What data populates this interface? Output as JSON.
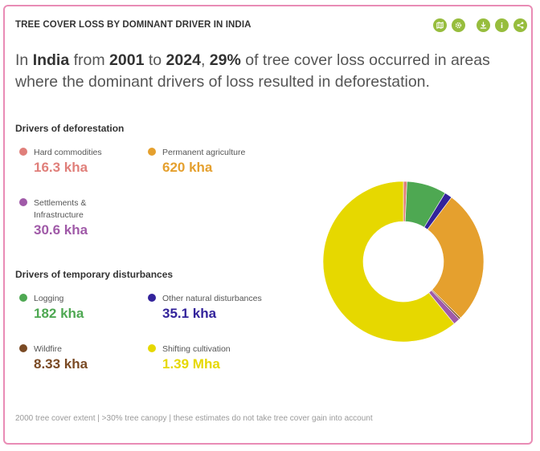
{
  "widget": {
    "title": "TREE COVER LOSS BY DOMINANT DRIVER IN INDIA",
    "toolbar": [
      {
        "icon": "map-icon"
      },
      {
        "icon": "settings-icon"
      },
      {
        "icon": "download-icon"
      },
      {
        "icon": "info-icon"
      },
      {
        "icon": "share-icon"
      }
    ],
    "accent_color": "#97bd3d",
    "border_color": "#e98cb5"
  },
  "summary": {
    "p1": "In ",
    "location": "India",
    "p2": " from ",
    "start_year": "2001",
    "p3": " to ",
    "end_year": "2024",
    "p4": ", ",
    "percent": "29%",
    "p5": " of tree cover loss occurred in areas where the dominant drivers of loss resulted in deforestation."
  },
  "deforestation": {
    "heading": "Drivers of deforestation",
    "items": [
      {
        "name": "Hard commodities",
        "value": "16.3 kha",
        "color": "#e07f7a"
      },
      {
        "name": "Permanent agriculture",
        "value": "620 kha",
        "color": "#e5a02e"
      },
      {
        "name": "Settlements & Infrastructure",
        "value": "30.6 kha",
        "color": "#a05aa8"
      }
    ]
  },
  "disturbances": {
    "heading": "Drivers of temporary disturbances",
    "items": [
      {
        "name": "Logging",
        "value": "182 kha",
        "color": "#4ea852"
      },
      {
        "name": "Other natural disturbances",
        "value": "35.1 kha",
        "color": "#33239b"
      },
      {
        "name": "Wildfire",
        "value": "8.33 kha",
        "color": "#7a4a24"
      },
      {
        "name": "Shifting cultivation",
        "value": "1.39 Mha",
        "color": "#e6d800"
      }
    ]
  },
  "chart_data": {
    "type": "pie",
    "donut": true,
    "slices": [
      {
        "label": "Hard commodities",
        "value": 16.3,
        "color": "#e07f7a"
      },
      {
        "label": "Logging",
        "value": 182,
        "color": "#4ea852"
      },
      {
        "label": "Other natural disturbances",
        "value": 35.1,
        "color": "#33239b"
      },
      {
        "label": "Permanent agriculture",
        "value": 620,
        "color": "#e5a02e"
      },
      {
        "label": "Wildfire",
        "value": 8.33,
        "color": "#7a4a24"
      },
      {
        "label": "Settlements & Infrastructure",
        "value": 30.6,
        "color": "#a05aa8"
      },
      {
        "label": "Shifting cultivation",
        "value": 1390,
        "color": "#e6d800"
      }
    ]
  },
  "footer": {
    "note": "2000 tree cover extent | >30% tree canopy | these estimates do not take tree cover gain into account"
  }
}
